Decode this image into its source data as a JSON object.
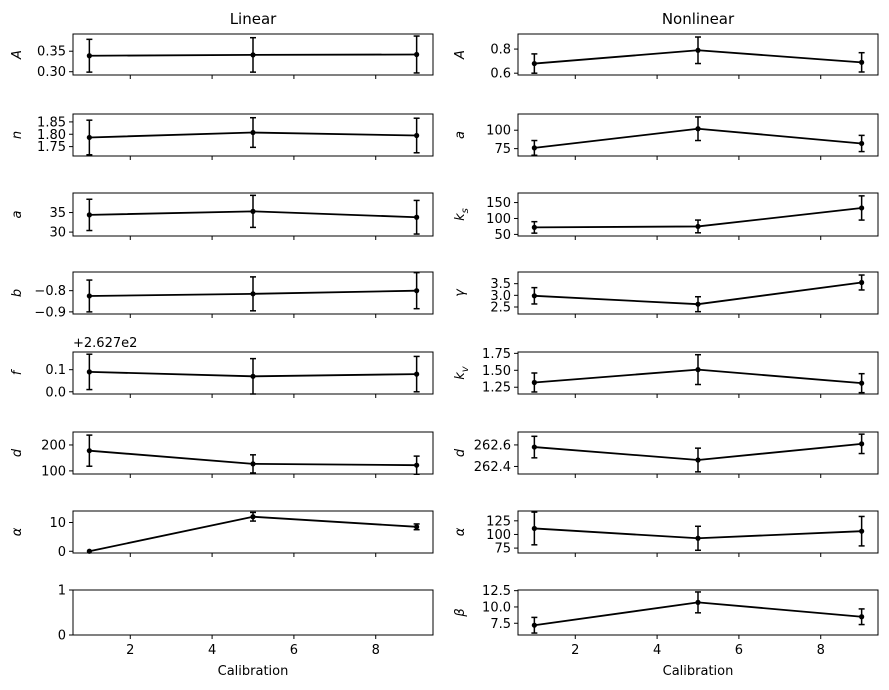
{
  "chart_data": {
    "type": "line-errorbar-grid",
    "x_common": [
      1,
      5,
      9
    ],
    "xlim": [
      0.6,
      9.4
    ],
    "xticks": [
      2,
      4,
      6,
      8
    ],
    "xlabel": "Calibration",
    "columns": [
      {
        "title": "Linear",
        "panels": [
          {
            "ylabel": "A",
            "y": [
              0.339,
              0.341,
              0.342
            ],
            "err": [
              0.04,
              0.042,
              0.045
            ],
            "ylim": [
              0.292,
              0.392
            ],
            "yticks": [
              0.3,
              0.35
            ],
            "ytick_labels": [
              "0.30",
              "0.35"
            ]
          },
          {
            "ylabel": "n",
            "y": [
              1.787,
              1.807,
              1.795
            ],
            "err": [
              0.07,
              0.06,
              0.07
            ],
            "ylim": [
              1.712,
              1.882
            ],
            "yticks": [
              1.75,
              1.8,
              1.85
            ],
            "ytick_labels": [
              "1.75",
              "1.80",
              "1.85"
            ]
          },
          {
            "ylabel": "a",
            "y": [
              34.4,
              35.3,
              33.8
            ],
            "err": [
              4.0,
              4.1,
              4.3
            ],
            "ylim": [
              29.0,
              40.0
            ],
            "yticks": [
              30,
              35
            ],
            "ytick_labels": [
              "30",
              "35"
            ]
          },
          {
            "ylabel": "b",
            "y": [
              -0.825,
              -0.815,
              -0.8
            ],
            "err": [
              0.075,
              0.08,
              0.085
            ],
            "ylim": [
              -0.91,
              -0.712
            ],
            "yticks": [
              -0.9,
              -0.8
            ],
            "ytick_labels": [
              "−0.9",
              "−0.8"
            ]
          },
          {
            "ylabel": "f",
            "offset_text": "+2.627e2",
            "y": [
              0.09,
              0.07,
              0.08
            ],
            "err": [
              0.08,
              0.08,
              0.08
            ],
            "ylim": [
              -0.01,
              0.18
            ],
            "yticks": [
              0.0,
              0.1
            ],
            "ytick_labels": [
              "0.0",
              "0.1"
            ]
          },
          {
            "ylabel": "d",
            "y": [
              178,
              127,
              122
            ],
            "err": [
              60,
              35,
              35
            ],
            "ylim": [
              88,
              250
            ],
            "yticks": [
              100,
              200
            ],
            "ytick_labels": [
              "100",
              "200"
            ]
          },
          {
            "ylabel": "α",
            "y": [
              0.0,
              12.0,
              8.5
            ],
            "err": [
              0.0,
              1.5,
              1.0
            ],
            "ylim": [
              -0.6,
              14.0
            ],
            "yticks": [
              0,
              10
            ],
            "ytick_labels": [
              "0",
              "10"
            ]
          },
          {
            "ylabel": "",
            "y": [],
            "err": [],
            "ylim": [
              0,
              1
            ],
            "yticks": [
              0,
              1
            ],
            "ytick_labels": [
              "0",
              "1"
            ],
            "empty": true
          }
        ]
      },
      {
        "title": "Nonlinear",
        "panels": [
          {
            "ylabel": "A",
            "y": [
              0.68,
              0.79,
              0.69
            ],
            "err": [
              0.08,
              0.11,
              0.08
            ],
            "ylim": [
              0.585,
              0.925
            ],
            "yticks": [
              0.6,
              0.8
            ],
            "ytick_labels": [
              "0.6",
              "0.8"
            ]
          },
          {
            "ylabel": "a",
            "y": [
              76.0,
              102.0,
              82.0
            ],
            "err": [
              10.0,
              16.0,
              11.0
            ],
            "ylim": [
              65.0,
              122.0
            ],
            "yticks": [
              75,
              100
            ],
            "ytick_labels": [
              "75",
              "100"
            ]
          },
          {
            "ylabel": "k_s",
            "y": [
              72.0,
              75.0,
              133.0
            ],
            "err": [
              18.0,
              20.0,
              38.0
            ],
            "ylim": [
              45.0,
              180.0
            ],
            "yticks": [
              50,
              100,
              150
            ],
            "ytick_labels": [
              "50",
              "100",
              "150"
            ]
          },
          {
            "ylabel": "γ",
            "y": [
              2.98,
              2.62,
              3.55
            ],
            "err": [
              0.35,
              0.32,
              0.32
            ],
            "ylim": [
              2.2,
              4.0
            ],
            "yticks": [
              2.5,
              3.0,
              3.5
            ],
            "ytick_labels": [
              "2.5",
              "3.0",
              "3.5"
            ]
          },
          {
            "ylabel": "k_v",
            "y": [
              1.32,
              1.51,
              1.31
            ],
            "err": [
              0.14,
              0.22,
              0.14
            ],
            "ylim": [
              1.15,
              1.77
            ],
            "yticks": [
              1.25,
              1.5,
              1.75
            ],
            "ytick_labels": [
              "1.25",
              "1.50",
              "1.75"
            ]
          },
          {
            "ylabel": "d",
            "y": [
              262.58,
              262.46,
              262.61
            ],
            "err": [
              0.1,
              0.11,
              0.09
            ],
            "ylim": [
              262.33,
              262.72
            ],
            "yticks": [
              262.4,
              262.6
            ],
            "ytick_labels": [
              "262.4",
              "262.6"
            ]
          },
          {
            "ylabel": "α",
            "y": [
              111.0,
              93.0,
              106.0
            ],
            "err": [
              30.0,
              22.0,
              27.0
            ],
            "ylim": [
              66.0,
              143.0
            ],
            "yticks": [
              75,
              100,
              125
            ],
            "ytick_labels": [
              "75",
              "100",
              "125"
            ]
          },
          {
            "ylabel": "β",
            "y": [
              7.2,
              10.7,
              8.5
            ],
            "err": [
              1.2,
              1.6,
              1.2
            ],
            "ylim": [
              5.7,
              12.6
            ],
            "yticks": [
              7.5,
              10.0,
              12.5
            ],
            "ytick_labels": [
              "7.5",
              "10.0",
              "12.5"
            ]
          }
        ]
      }
    ]
  }
}
